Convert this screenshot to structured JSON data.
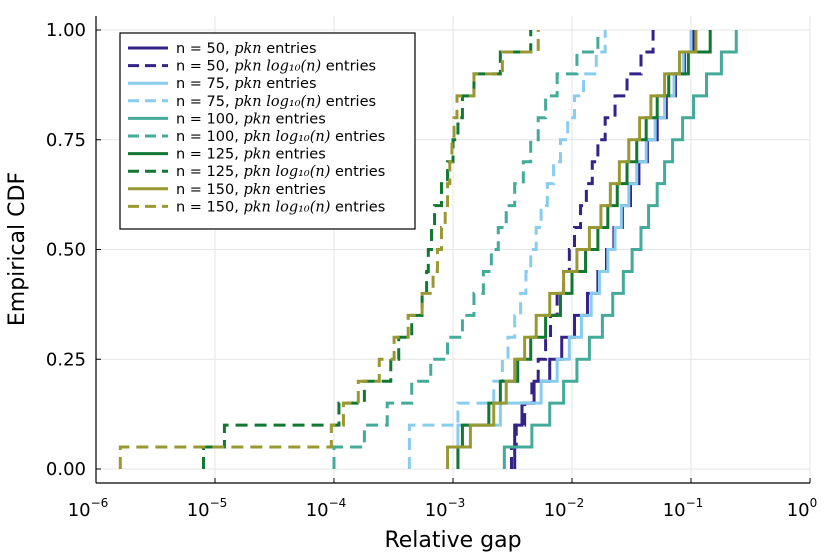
{
  "chart_data": {
    "type": "line",
    "title": "",
    "xlabel": "Relative gap",
    "ylabel": "Empirical CDF",
    "xscale": "log10",
    "xlim_exp": [
      -6,
      0
    ],
    "ylim": [
      0,
      1
    ],
    "x_ticks": [
      {
        "base": "10",
        "exp": "−6"
      },
      {
        "base": "10",
        "exp": "−5"
      },
      {
        "base": "10",
        "exp": "−4"
      },
      {
        "base": "10",
        "exp": "−3"
      },
      {
        "base": "10",
        "exp": "−2"
      },
      {
        "base": "10",
        "exp": "−1"
      },
      {
        "base": "10",
        "exp": "0"
      }
    ],
    "y_ticks": [
      "0.00",
      "0.25",
      "0.50",
      "0.75",
      "1.00"
    ],
    "grid": true,
    "legend_position": "top-left",
    "series": [
      {
        "name": "n = 50, pkn entries",
        "label_prefix": "n = 50, ",
        "label_math": "pkn",
        "label_suffix": " entries",
        "color": "#332288",
        "style": "solid",
        "x": [
          0.0033,
          0.0033,
          0.0038,
          0.0048,
          0.0065,
          0.0082,
          0.0105,
          0.0135,
          0.0165,
          0.0195,
          0.0225,
          0.0265,
          0.031,
          0.0365,
          0.043,
          0.052,
          0.062,
          0.074,
          0.088,
          0.105
        ],
        "y": [
          0.05,
          0.1,
          0.15,
          0.2,
          0.25,
          0.3,
          0.35,
          0.4,
          0.45,
          0.5,
          0.55,
          0.6,
          0.65,
          0.7,
          0.75,
          0.8,
          0.85,
          0.9,
          0.95,
          1.0
        ]
      },
      {
        "name": "n = 50, pkn log10(n) entries",
        "label_prefix": "n = 50, ",
        "label_math": "pkn log₁₀(n)",
        "label_suffix": " entries",
        "color": "#332288",
        "style": "dashed",
        "x": [
          0.0031,
          0.0034,
          0.004,
          0.0046,
          0.0052,
          0.006,
          0.0066,
          0.0075,
          0.0085,
          0.0095,
          0.0105,
          0.0118,
          0.0132,
          0.0148,
          0.0165,
          0.019,
          0.023,
          0.029,
          0.038,
          0.048
        ],
        "y": [
          0.05,
          0.1,
          0.15,
          0.2,
          0.25,
          0.3,
          0.35,
          0.4,
          0.45,
          0.5,
          0.55,
          0.6,
          0.65,
          0.7,
          0.75,
          0.8,
          0.85,
          0.9,
          0.95,
          1.0
        ]
      },
      {
        "name": "n = 75, pkn entries",
        "label_prefix": "n = 75, ",
        "label_math": "pkn",
        "label_suffix": " entries",
        "color": "#88CCEE",
        "style": "solid",
        "x": [
          0.0011,
          0.0011,
          0.0025,
          0.0055,
          0.0075,
          0.0095,
          0.012,
          0.0145,
          0.017,
          0.02,
          0.023,
          0.026,
          0.03,
          0.035,
          0.042,
          0.05,
          0.06,
          0.072,
          0.086,
          0.1
        ],
        "y": [
          0.05,
          0.1,
          0.15,
          0.2,
          0.25,
          0.3,
          0.35,
          0.4,
          0.45,
          0.5,
          0.55,
          0.6,
          0.65,
          0.7,
          0.75,
          0.8,
          0.85,
          0.9,
          0.95,
          1.0
        ]
      },
      {
        "name": "n = 75, pkn log10(n) entries",
        "label_prefix": "n = 75, ",
        "label_math": "pkn log₁₀(n)",
        "label_suffix": " entries",
        "color": "#88CCEE",
        "style": "dashed",
        "x": [
          0.00043,
          0.00043,
          0.0011,
          0.0022,
          0.0026,
          0.0029,
          0.0033,
          0.0037,
          0.0041,
          0.0045,
          0.005,
          0.0055,
          0.0062,
          0.007,
          0.008,
          0.0092,
          0.0105,
          0.0125,
          0.016,
          0.019
        ],
        "y": [
          0.05,
          0.1,
          0.15,
          0.2,
          0.25,
          0.3,
          0.35,
          0.4,
          0.45,
          0.5,
          0.55,
          0.6,
          0.65,
          0.7,
          0.75,
          0.8,
          0.85,
          0.9,
          0.95,
          1.0
        ]
      },
      {
        "name": "n = 100, pkn entries",
        "label_prefix": "n = 100, ",
        "label_math": "pkn",
        "label_suffix": " entries",
        "color": "#44AA99",
        "style": "solid",
        "x": [
          0.0027,
          0.0046,
          0.0065,
          0.0085,
          0.011,
          0.014,
          0.018,
          0.022,
          0.027,
          0.032,
          0.038,
          0.044,
          0.052,
          0.06,
          0.07,
          0.085,
          0.105,
          0.135,
          0.18,
          0.24
        ],
        "y": [
          0.05,
          0.1,
          0.15,
          0.2,
          0.25,
          0.3,
          0.35,
          0.4,
          0.45,
          0.5,
          0.55,
          0.6,
          0.65,
          0.7,
          0.75,
          0.8,
          0.85,
          0.9,
          0.95,
          1.0
        ]
      },
      {
        "name": "n = 100, pkn log10(n) entries",
        "label_prefix": "n = 100, ",
        "label_math": "pkn log₁₀(n)",
        "label_suffix": " entries",
        "color": "#44AA99",
        "style": "dashed",
        "x": [
          0.0001,
          0.00018,
          0.00028,
          0.00045,
          0.00065,
          0.0009,
          0.0012,
          0.0015,
          0.0018,
          0.0021,
          0.0024,
          0.0028,
          0.0033,
          0.0039,
          0.0045,
          0.0052,
          0.006,
          0.0075,
          0.011,
          0.0165
        ],
        "y": [
          0.05,
          0.1,
          0.15,
          0.2,
          0.25,
          0.3,
          0.35,
          0.4,
          0.45,
          0.5,
          0.55,
          0.6,
          0.65,
          0.7,
          0.75,
          0.8,
          0.85,
          0.9,
          0.95,
          1.0
        ]
      },
      {
        "name": "n = 125, pkn entries",
        "label_prefix": "n = 125, ",
        "label_math": "pkn",
        "label_suffix": " entries",
        "color": "#117733",
        "style": "solid",
        "x": [
          0.0011,
          0.0012,
          0.002,
          0.0025,
          0.0035,
          0.0045,
          0.006,
          0.008,
          0.01,
          0.013,
          0.0165,
          0.02,
          0.024,
          0.029,
          0.035,
          0.042,
          0.052,
          0.065,
          0.095,
          0.145
        ],
        "y": [
          0.05,
          0.1,
          0.15,
          0.2,
          0.25,
          0.3,
          0.35,
          0.4,
          0.45,
          0.5,
          0.55,
          0.6,
          0.65,
          0.7,
          0.75,
          0.8,
          0.85,
          0.9,
          0.95,
          1.0
        ]
      },
      {
        "name": "n = 125, pkn log10(n) entries",
        "label_prefix": "n = 125, ",
        "label_math": "pkn log₁₀(n)",
        "label_suffix": " entries",
        "color": "#117733",
        "style": "dashed",
        "x": [
          8e-06,
          1.2e-05,
          0.00011,
          0.00018,
          0.0003,
          0.00035,
          0.00045,
          0.00055,
          0.0006,
          0.00062,
          0.00066,
          0.0007,
          0.0008,
          0.0009,
          0.001,
          0.0011,
          0.0012,
          0.0015,
          0.0025,
          0.0045
        ],
        "y": [
          0.05,
          0.1,
          0.15,
          0.2,
          0.25,
          0.3,
          0.35,
          0.4,
          0.45,
          0.5,
          0.55,
          0.6,
          0.65,
          0.7,
          0.75,
          0.8,
          0.85,
          0.9,
          0.95,
          1.0
        ]
      },
      {
        "name": "n = 150, pkn entries",
        "label_prefix": "n = 150, ",
        "label_math": "pkn",
        "label_suffix": " entries",
        "color": "#999933",
        "style": "solid",
        "x": [
          0.0009,
          0.0014,
          0.0022,
          0.0028,
          0.0033,
          0.004,
          0.005,
          0.0065,
          0.0085,
          0.011,
          0.014,
          0.0175,
          0.021,
          0.025,
          0.03,
          0.037,
          0.046,
          0.06,
          0.08,
          0.11
        ],
        "y": [
          0.05,
          0.1,
          0.15,
          0.2,
          0.25,
          0.3,
          0.35,
          0.4,
          0.45,
          0.5,
          0.55,
          0.6,
          0.65,
          0.7,
          0.75,
          0.8,
          0.85,
          0.9,
          0.95,
          1.0
        ]
      },
      {
        "name": "n = 150, pkn log10(n) entries",
        "label_prefix": "n = 150, ",
        "label_math": "pkn log₁₀(n)",
        "label_suffix": " entries",
        "color": "#999933",
        "style": "dashed",
        "x": [
          1.6e-06,
          9.5e-05,
          0.00012,
          0.00016,
          0.00024,
          0.00032,
          0.00042,
          0.00055,
          0.00068,
          0.00074,
          0.0008,
          0.00086,
          0.0009,
          0.00094,
          0.00098,
          0.00102,
          0.00108,
          0.0015,
          0.0026,
          0.0052
        ],
        "y": [
          0.05,
          0.1,
          0.15,
          0.2,
          0.25,
          0.3,
          0.35,
          0.4,
          0.45,
          0.5,
          0.55,
          0.6,
          0.65,
          0.7,
          0.75,
          0.8,
          0.85,
          0.9,
          0.95,
          1.0
        ]
      }
    ]
  }
}
